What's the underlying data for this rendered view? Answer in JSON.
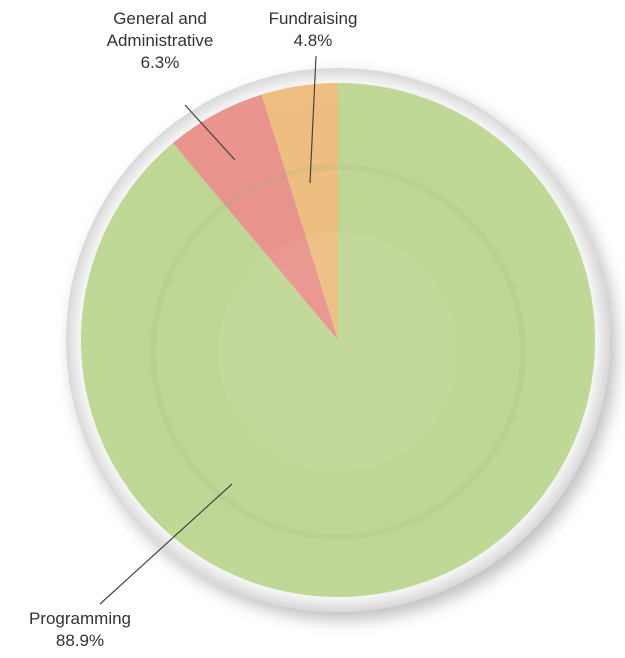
{
  "chart_data": {
    "type": "pie",
    "categories": [
      "Programming",
      "General and Administrative",
      "Fundraising"
    ],
    "values": [
      88.9,
      6.3,
      4.8
    ],
    "value_labels": [
      "88.9%",
      "6.3%",
      "4.8%"
    ],
    "colors": [
      "#bcd68e",
      "#e98d86",
      "#efbb7a"
    ]
  }
}
